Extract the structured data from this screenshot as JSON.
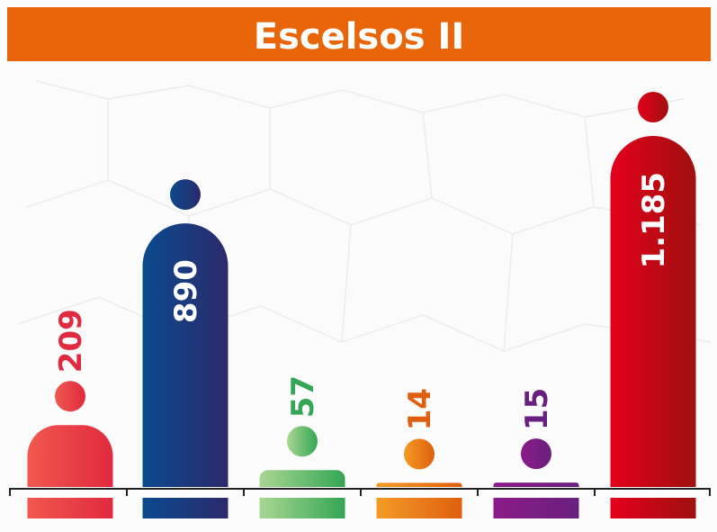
{
  "chart_data": {
    "type": "bar",
    "title": "Escelsos II",
    "values": [
      209,
      890,
      57,
      14,
      15,
      1185
    ],
    "value_labels": [
      "209",
      "890",
      "57",
      "14",
      "15",
      "1.185"
    ],
    "colors": [
      [
        "#f0584f",
        "#e02a3f"
      ],
      [
        "#0b4a8e",
        "#2b2a6c"
      ],
      [
        "#a9d692",
        "#35a655"
      ],
      [
        "#f39b26",
        "#df5f0e"
      ],
      [
        "#8c1b88",
        "#68207e"
      ],
      [
        "#e4001b",
        "#9e110f"
      ]
    ]
  }
}
